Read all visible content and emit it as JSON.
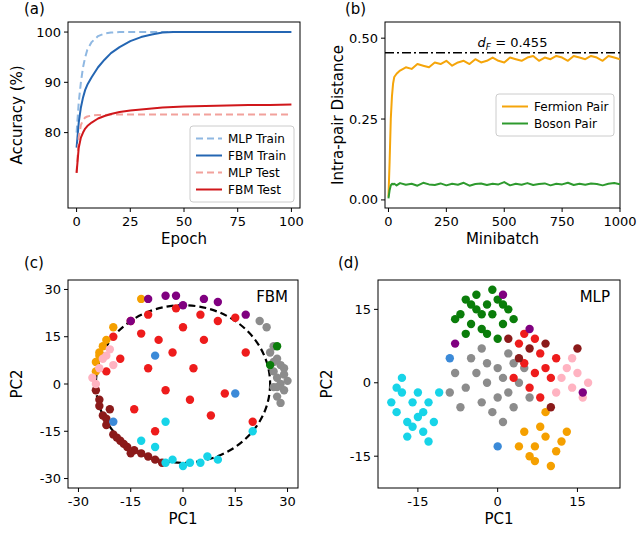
{
  "chart_data": [
    {
      "type": "line",
      "panel_label": "(a)",
      "x_label": "Epoch",
      "y_label": "Accuracy (%)",
      "xlim": [
        -4,
        104
      ],
      "ylim": [
        65,
        102
      ],
      "xticks": [
        0,
        25,
        50,
        75,
        100
      ],
      "yticks": [
        80,
        90,
        100
      ],
      "grid": false,
      "legend": "lower right",
      "marker": "none",
      "x": [
        0,
        1,
        2,
        3,
        4,
        5,
        7,
        10,
        13,
        16,
        20,
        25,
        30,
        35,
        40,
        45,
        50,
        60,
        70,
        80,
        90,
        100
      ],
      "series": [
        {
          "name": "MLP Train",
          "color": "#8fb8e2",
          "line_style": "dashed",
          "values": [
            80,
            86,
            90,
            93,
            95,
            96.5,
            98,
            99.2,
            99.7,
            99.9,
            100,
            100,
            100,
            100,
            100,
            100,
            100,
            100,
            100,
            100,
            100,
            100
          ]
        },
        {
          "name": "FBM Train",
          "color": "#2466b3",
          "line_style": "solid",
          "values": [
            77,
            82,
            85,
            87,
            88.5,
            89.5,
            91,
            93,
            94.5,
            95.8,
            97,
            98.2,
            99,
            99.5,
            99.9,
            100,
            100,
            100,
            100,
            100,
            100,
            100
          ]
        },
        {
          "name": "MLP Test",
          "color": "#f2a19c",
          "line_style": "dashed",
          "values": [
            72,
            79,
            81.5,
            82.5,
            83,
            83.2,
            83.4,
            83.5,
            83.5,
            83.6,
            83.6,
            83.6,
            83.6,
            83.6,
            83.6,
            83.6,
            83.6,
            83.6,
            83.6,
            83.6,
            83.6,
            83.6
          ]
        },
        {
          "name": "FBM Test",
          "color": "#d0171b",
          "line_style": "solid",
          "values": [
            72,
            77,
            79,
            80,
            80.8,
            81.3,
            82,
            82.8,
            83.3,
            83.7,
            84.1,
            84.4,
            84.6,
            84.8,
            85,
            85.1,
            85.2,
            85.3,
            85.4,
            85.5,
            85.5,
            85.6
          ]
        }
      ]
    },
    {
      "type": "line",
      "panel_label": "(b)",
      "x_label": "Minibatch",
      "y_label": "Intra-pair Distance",
      "xlim": [
        -15,
        1000
      ],
      "ylim": [
        -0.025,
        0.55
      ],
      "xticks": [
        0,
        250,
        500,
        750,
        1000
      ],
      "yticks": [
        {
          "value": 0,
          "label": "0.00"
        },
        {
          "value": 0.25,
          "label": "0.25"
        },
        {
          "value": 0.5,
          "label": "0.50"
        }
      ],
      "grid": false,
      "legend": "center right",
      "marker": "none",
      "reference_line": {
        "y": 0.455,
        "label": "d",
        "subscript": "F",
        "text": " = 0.455",
        "color": "#000000",
        "line_style": "dashdot"
      },
      "x": [
        0,
        5,
        10,
        15,
        20,
        25,
        35,
        50,
        75,
        100,
        125,
        150,
        175,
        200,
        225,
        250,
        275,
        300,
        325,
        350,
        375,
        400,
        425,
        450,
        475,
        500,
        525,
        550,
        575,
        600,
        625,
        650,
        675,
        700,
        725,
        750,
        775,
        800,
        825,
        850,
        875,
        900,
        925,
        950,
        975,
        1000
      ],
      "series": [
        {
          "name": "Fermion Pair",
          "color": "#f5a50a",
          "line_style": "solid",
          "values": [
            0.01,
            0.12,
            0.25,
            0.32,
            0.36,
            0.38,
            0.39,
            0.4,
            0.41,
            0.405,
            0.42,
            0.415,
            0.41,
            0.425,
            0.42,
            0.43,
            0.415,
            0.425,
            0.43,
            0.42,
            0.435,
            0.425,
            0.43,
            0.44,
            0.43,
            0.425,
            0.44,
            0.435,
            0.43,
            0.44,
            0.445,
            0.43,
            0.44,
            0.435,
            0.445,
            0.44,
            0.43,
            0.445,
            0.44,
            0.435,
            0.445,
            0.44,
            0.43,
            0.445,
            0.44,
            0.435
          ]
        },
        {
          "name": "Boson Pair",
          "color": "#2e9a2e",
          "line_style": "solid",
          "values": [
            0.005,
            0.03,
            0.045,
            0.05,
            0.048,
            0.05,
            0.045,
            0.052,
            0.047,
            0.05,
            0.044,
            0.053,
            0.048,
            0.046,
            0.051,
            0.045,
            0.05,
            0.047,
            0.053,
            0.044,
            0.049,
            0.051,
            0.046,
            0.05,
            0.048,
            0.055,
            0.045,
            0.05,
            0.047,
            0.052,
            0.046,
            0.049,
            0.051,
            0.045,
            0.05,
            0.048,
            0.053,
            0.046,
            0.05,
            0.047,
            0.051,
            0.049,
            0.045,
            0.05,
            0.052,
            0.048
          ]
        }
      ]
    },
    {
      "type": "scatter",
      "panel_label": "(c)",
      "annotation": "FBM",
      "x_label": "PC1",
      "y_label": "PC2",
      "xlim": [
        -33,
        33
      ],
      "ylim": [
        -33,
        33
      ],
      "xticks": [
        -30,
        -15,
        0,
        15,
        30
      ],
      "yticks": [
        -30,
        -15,
        0,
        15,
        30
      ],
      "grid": false,
      "marker": "circle",
      "reference_circle": {
        "x": 0,
        "y": 0,
        "r": 25,
        "line_style": "dashed",
        "color": "#000000"
      },
      "series": [
        {
          "color": "#8c8c8c",
          "x": [
            27,
            28,
            26,
            29,
            27,
            28,
            26,
            29,
            27,
            25,
            24,
            28,
            26,
            30,
            22,
            27,
            26,
            29
          ],
          "values": [
            8,
            6,
            4,
            3,
            2,
            0,
            -1,
            -2,
            -4,
            10,
            18,
            -6,
            12,
            1,
            20,
            -1,
            7,
            5
          ]
        },
        {
          "color": "#ee1c1c",
          "x": [
            -15,
            -12,
            -7,
            -3,
            0,
            5,
            10,
            15,
            -18,
            -10,
            -5,
            2,
            8,
            -8,
            12,
            18,
            -20,
            3,
            -2,
            -14,
            20,
            -22,
            6,
            -10
          ],
          "values": [
            20,
            16,
            14,
            10,
            18,
            22,
            20,
            21,
            8,
            5,
            -2,
            -5,
            -10,
            -15,
            -3,
            10,
            15,
            5,
            24,
            -8,
            -12,
            4,
            14,
            22
          ]
        },
        {
          "color": "#8b1a1a",
          "x": [
            -24,
            -23,
            -22,
            -20,
            -18,
            -16,
            -14,
            -12,
            -10,
            -8,
            -21,
            -25,
            -19,
            -15,
            -24,
            -6,
            -22,
            -17
          ],
          "values": [
            -5,
            -10,
            -13,
            -16,
            -18,
            -20,
            -21,
            -22,
            -23,
            -24,
            -8,
            -2,
            -17,
            -22,
            -7,
            -25,
            -11,
            -19
          ]
        },
        {
          "color": "#17d4e8",
          "x": [
            -5,
            0,
            5,
            10,
            -3,
            2,
            -8,
            -5,
            7,
            20,
            -12
          ],
          "values": [
            -25,
            -26,
            -25,
            -24,
            -24,
            -25,
            -20,
            -12,
            -23,
            -15,
            -18
          ]
        },
        {
          "color": "#f5a000",
          "x": [
            -25,
            -24,
            -23,
            -25,
            -22,
            -12,
            -20,
            -24
          ],
          "values": [
            7,
            10,
            12,
            4,
            14,
            27,
            18,
            9
          ]
        },
        {
          "color": "#ffb3c1",
          "x": [
            -26,
            -23,
            -24,
            -22,
            -21,
            -25,
            -20
          ],
          "values": [
            2,
            8,
            5,
            9,
            11,
            0,
            6
          ]
        },
        {
          "color": "#800080",
          "x": [
            -5,
            -10,
            0,
            10,
            18,
            -2,
            -15,
            6
          ],
          "values": [
            28,
            27,
            25,
            26,
            22,
            28,
            20,
            27
          ]
        },
        {
          "color": "#0a7d0a",
          "x": [
            25,
            27
          ],
          "values": [
            6,
            12
          ]
        },
        {
          "color": "#3b8ad8",
          "x": [
            -8,
            15,
            -20
          ],
          "values": [
            9,
            -3,
            -12
          ]
        }
      ]
    },
    {
      "type": "scatter",
      "panel_label": "(d)",
      "annotation": "MLP",
      "x_label": "PC1",
      "y_label": "PC2",
      "xlim": [
        -22.5,
        23
      ],
      "ylim": [
        -21.5,
        21
      ],
      "xticks": [
        -15,
        0,
        15
      ],
      "yticks": [
        -15,
        0,
        15
      ],
      "grid": false,
      "marker": "circle",
      "series": [
        {
          "color": "#8c8c8c",
          "x": [
            -4,
            -2,
            0,
            2,
            -6,
            -3,
            1,
            3,
            -1,
            4,
            -5,
            0,
            -8,
            2,
            5,
            -2,
            -7,
            3,
            -9,
            6,
            -3,
            1
          ],
          "values": [
            2,
            0,
            3,
            -2,
            -1,
            -4,
            1,
            4,
            -6,
            0,
            5,
            -3,
            2,
            6,
            3,
            4,
            -5,
            -5,
            -2,
            -3,
            7,
            -8
          ]
        },
        {
          "color": "#0a7d0a",
          "x": [
            -6,
            -4,
            -2,
            -5,
            -1,
            -3,
            0,
            -7,
            -4,
            1,
            -2,
            2,
            -6,
            -8,
            -3,
            0,
            3,
            -1,
            -5,
            1
          ],
          "values": [
            17,
            15,
            16,
            12,
            14,
            11,
            17,
            14,
            18,
            12,
            10,
            15,
            10,
            13,
            14,
            9,
            13,
            19,
            16,
            16
          ]
        },
        {
          "color": "#17d4e8",
          "x": [
            -18,
            -16,
            -14,
            -19,
            -17,
            -15,
            -13,
            -20,
            -16,
            -12,
            -18,
            -14,
            -11,
            -17,
            -15,
            -19,
            -13
          ],
          "values": [
            -2,
            -4,
            -6,
            -6,
            -8,
            -2,
            -4,
            -4,
            -9,
            -8,
            1,
            -10,
            -2,
            -11,
            -7,
            -1,
            -12
          ]
        },
        {
          "color": "#f5a000",
          "x": [
            5,
            7,
            9,
            11,
            6,
            8,
            12,
            10,
            4,
            13,
            7,
            9
          ],
          "values": [
            -10,
            -13,
            -11,
            -14,
            -15,
            -9,
            -12,
            -17,
            -13,
            -10,
            -16,
            -6
          ]
        },
        {
          "color": "#ee1c1c",
          "x": [
            5,
            7,
            8,
            6,
            9,
            4,
            10,
            7,
            3,
            11,
            8,
            5
          ],
          "values": [
            4,
            2,
            6,
            -1,
            3,
            8,
            1,
            9,
            1,
            5,
            -3,
            10
          ]
        },
        {
          "color": "#ffb3c1",
          "x": [
            12,
            14,
            13,
            15,
            16,
            11,
            17,
            14
          ],
          "values": [
            1,
            -1,
            3,
            2,
            -3,
            -2,
            0,
            5
          ]
        },
        {
          "color": "#8b1a1a",
          "x": [
            4,
            6,
            2,
            10,
            9,
            15
          ],
          "values": [
            5,
            7,
            9,
            -5,
            8,
            7
          ]
        },
        {
          "color": "#800080",
          "x": [
            1,
            -8,
            6,
            16
          ],
          "values": [
            18,
            8,
            11,
            -2
          ]
        },
        {
          "color": "#3b8ad8",
          "x": [
            -9,
            0
          ],
          "values": [
            5,
            -13
          ]
        }
      ]
    }
  ]
}
